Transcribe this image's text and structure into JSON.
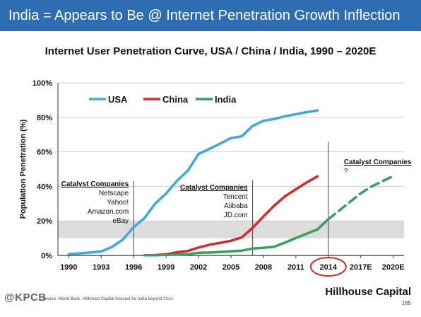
{
  "banner": {
    "title": "India = Appears to Be @ Internet Penetration Growth Inflection"
  },
  "chart_data": {
    "type": "line",
    "title": "Internet User Penetration Curve, USA / China / India, 1990 – 2020E",
    "ylabel": "Population Penetration (%)",
    "xlabel": "",
    "xlim": [
      1990,
      2020
    ],
    "ylim": [
      0,
      100
    ],
    "x_ticks": [
      {
        "value": 1990,
        "label": "1990"
      },
      {
        "value": 1993,
        "label": "1993"
      },
      {
        "value": 1996,
        "label": "1996"
      },
      {
        "value": 1999,
        "label": "1999"
      },
      {
        "value": 2002,
        "label": "2002"
      },
      {
        "value": 2005,
        "label": "2005"
      },
      {
        "value": 2008,
        "label": "2008"
      },
      {
        "value": 2011,
        "label": "2011"
      },
      {
        "value": 2014,
        "label": "2014"
      },
      {
        "value": 2017,
        "label": "2017E"
      },
      {
        "value": 2020,
        "label": "2020E"
      }
    ],
    "y_ticks": [
      {
        "value": 0,
        "label": "0%"
      },
      {
        "value": 20,
        "label": "20%"
      },
      {
        "value": 40,
        "label": "40%"
      },
      {
        "value": 60,
        "label": "60%"
      },
      {
        "value": 80,
        "label": "80%"
      },
      {
        "value": 100,
        "label": "100%"
      }
    ],
    "highlight_band": [
      10,
      20
    ],
    "highlight_tick": "2014",
    "legend": {
      "placement": "top-left"
    },
    "series": [
      {
        "name": "USA",
        "color": "#3ea9dd",
        "x": [
          1990,
          1991,
          1992,
          1993,
          1994,
          1995,
          1996,
          1997,
          1998,
          1999,
          2000,
          2001,
          2002,
          2003,
          2004,
          2005,
          2006,
          2007,
          2008,
          2009,
          2010,
          2011,
          2012,
          2013
        ],
        "y": [
          0.8,
          1.2,
          1.7,
          2.3,
          4.9,
          9.2,
          16.4,
          21.6,
          30.1,
          35.8,
          43.1,
          49.1,
          58.8,
          61.7,
          64.8,
          68,
          69,
          75,
          78,
          79,
          80.6,
          81.8,
          83,
          84
        ]
      },
      {
        "name": "China",
        "color": "#d32a2a",
        "x": [
          1997,
          1998,
          1999,
          2000,
          2001,
          2002,
          2003,
          2004,
          2005,
          2006,
          2007,
          2008,
          2009,
          2010,
          2011,
          2012,
          2013
        ],
        "y": [
          0.1,
          0.2,
          0.7,
          1.8,
          2.6,
          4.6,
          6.2,
          7.3,
          8.5,
          10.5,
          16,
          22.6,
          28.9,
          34.3,
          38.3,
          42.3,
          45.8
        ]
      },
      {
        "name": "India",
        "color": "#35a05a",
        "x": [
          1997,
          1998,
          1999,
          2000,
          2001,
          2002,
          2003,
          2004,
          2005,
          2006,
          2007,
          2008,
          2009,
          2010,
          2011,
          2012,
          2013,
          2014
        ],
        "y": [
          0.1,
          0.1,
          0.3,
          0.5,
          0.7,
          1.5,
          1.7,
          2,
          2.4,
          2.8,
          4,
          4.4,
          5.1,
          7.5,
          10.1,
          12.6,
          15.1,
          21
        ]
      },
      {
        "name": "India (forecast)",
        "color": "#35a05a",
        "dashed": true,
        "x": [
          2014,
          2015,
          2016,
          2017,
          2018,
          2019,
          2020
        ],
        "y": [
          21,
          26,
          31,
          36,
          40,
          43,
          46
        ]
      }
    ],
    "annotations": [
      {
        "x": 1996,
        "header": "Catalyst Companies",
        "lines": [
          "Netscape",
          "Yahoo!",
          "Amazon.com",
          "eBay"
        ]
      },
      {
        "x": 2007,
        "header": "Catalyst Companies",
        "lines": [
          "Tencent",
          "Alibaba",
          "JD.com"
        ]
      },
      {
        "x": 2014,
        "header": "Catalyst Companies",
        "lines": [
          "?"
        ]
      }
    ]
  },
  "footer": {
    "logo": "@KPCB",
    "source": "Source: World Bank, Hillhouse Capital forecast for India beyond 2014.",
    "brand": "Hillhouse Capital",
    "page": "165"
  }
}
